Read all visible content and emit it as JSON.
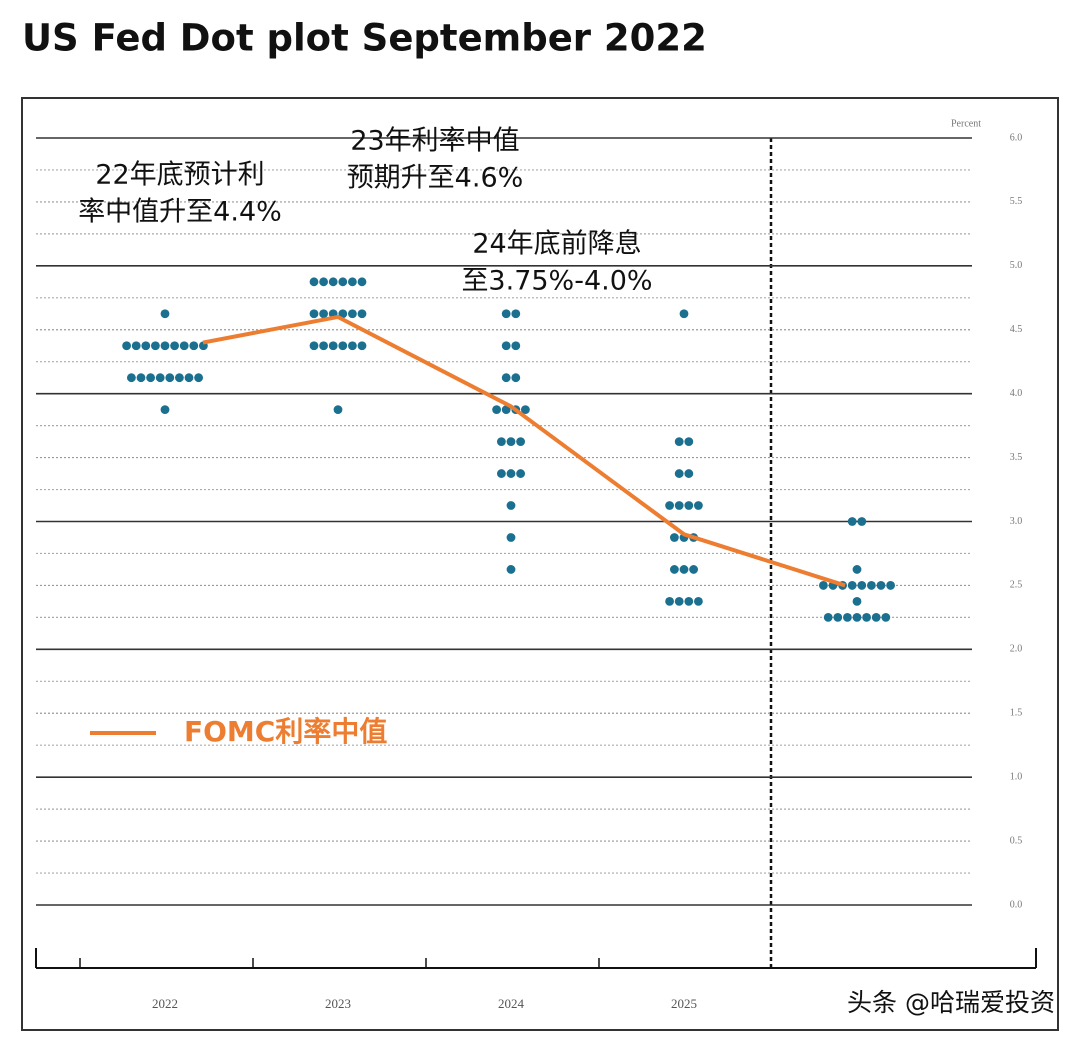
{
  "chart_data": {
    "type": "dot",
    "title": "US Fed Dot plot September 2022",
    "ylabel": "Percent",
    "categories": [
      "2022",
      "2023",
      "2024",
      "2025",
      null
    ],
    "ylim": [
      0,
      6
    ],
    "yticks": [
      {
        "value": 0,
        "label": "0.0"
      },
      {
        "value": 0.5,
        "label": "0.5"
      },
      {
        "value": 1,
        "label": "1.0"
      },
      {
        "value": 1.5,
        "label": "1.5"
      },
      {
        "value": 2,
        "label": "2.0"
      },
      {
        "value": 2.5,
        "label": "2.5"
      },
      {
        "value": 3,
        "label": "3.0"
      },
      {
        "value": 3.5,
        "label": "3.5"
      },
      {
        "value": 4,
        "label": "4.0"
      },
      {
        "value": 4.5,
        "label": "4.5"
      },
      {
        "value": 5,
        "label": "5.0"
      },
      {
        "value": 5.5,
        "label": "5.5"
      },
      {
        "value": 6,
        "label": "6.0"
      }
    ],
    "dot_color": "#1b6f8f",
    "dot_values": [
      [
        4.625,
        4.375,
        4.375,
        4.375,
        4.375,
        4.375,
        4.375,
        4.375,
        4.375,
        4.375,
        4.125,
        4.125,
        4.125,
        4.125,
        4.125,
        4.125,
        4.125,
        4.125,
        3.875
      ],
      [
        4.875,
        4.875,
        4.875,
        4.875,
        4.875,
        4.875,
        4.625,
        4.625,
        4.625,
        4.625,
        4.625,
        4.625,
        4.375,
        4.375,
        4.375,
        4.375,
        4.375,
        4.375,
        3.875
      ],
      [
        4.625,
        4.625,
        4.375,
        4.375,
        4.125,
        4.125,
        3.875,
        3.875,
        3.875,
        3.875,
        3.625,
        3.625,
        3.625,
        3.375,
        3.375,
        3.375,
        3.125,
        2.875,
        2.625
      ],
      [
        4.625,
        3.625,
        3.625,
        3.375,
        3.375,
        3.125,
        3.125,
        3.125,
        3.125,
        2.875,
        2.875,
        2.875,
        2.625,
        2.625,
        2.625,
        2.375,
        2.375,
        2.375,
        2.375
      ],
      [
        3,
        3,
        2.625,
        2.5,
        2.5,
        2.5,
        2.5,
        2.5,
        2.5,
        2.5,
        2.5,
        2.375,
        2.25,
        2.25,
        2.25,
        2.25,
        2.25,
        2.25,
        2.25
      ]
    ],
    "series": [
      {
        "name": "FOMC利率中值",
        "color": "#ed7d31",
        "values": [
          4.4,
          4.6,
          3.9,
          2.9,
          2.5
        ]
      }
    ],
    "annotations": [
      {
        "lines": [
          "22年底预计利",
          "率中值升至4.4%"
        ]
      },
      {
        "lines": [
          "23年利率中值",
          "预期升至4.6%"
        ]
      },
      {
        "lines": [
          "24年底前降息",
          "至3.75%-4.0%"
        ]
      }
    ],
    "watermark": "头条 @哈瑞爱投资"
  }
}
